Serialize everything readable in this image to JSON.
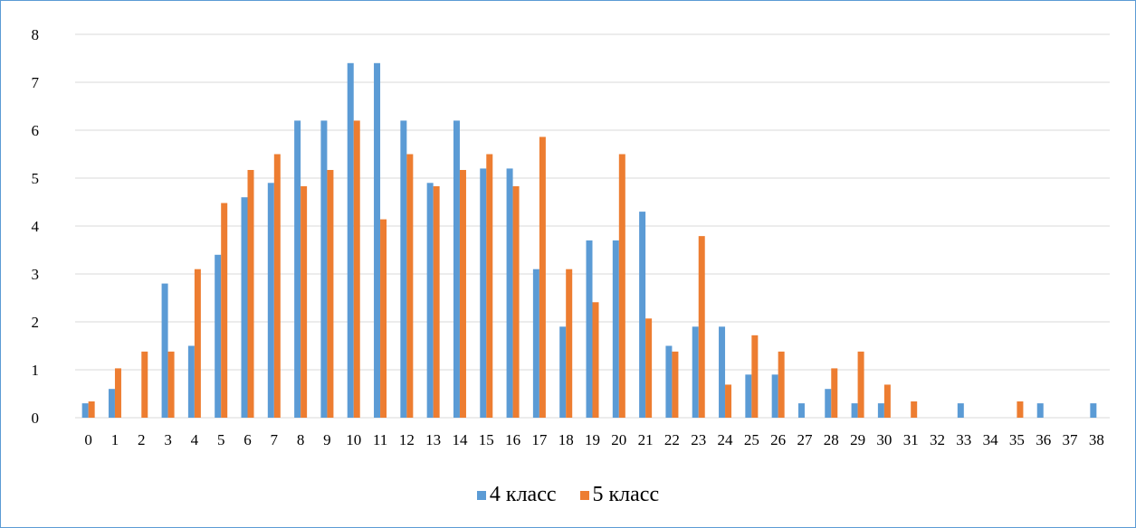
{
  "chart_data": {
    "type": "bar",
    "title": "",
    "xlabel": "",
    "ylabel": "",
    "ylim": [
      0,
      8
    ],
    "yticks": [
      0,
      1,
      2,
      3,
      4,
      5,
      6,
      7,
      8
    ],
    "grid": true,
    "legend_position": "bottom",
    "categories": [
      "0",
      "1",
      "2",
      "3",
      "4",
      "5",
      "6",
      "7",
      "8",
      "9",
      "10",
      "11",
      "12",
      "13",
      "14",
      "15",
      "16",
      "17",
      "18",
      "19",
      "20",
      "21",
      "22",
      "23",
      "24",
      "25",
      "26",
      "27",
      "28",
      "29",
      "30",
      "31",
      "32",
      "33",
      "34",
      "35",
      "36",
      "37",
      "38"
    ],
    "series": [
      {
        "name": "4 класс",
        "color": "#5b9bd5",
        "values": [
          0.3,
          0.6,
          0,
          2.8,
          1.5,
          3.4,
          4.6,
          4.9,
          6.2,
          6.2,
          7.4,
          7.4,
          6.2,
          4.9,
          6.2,
          5.2,
          5.2,
          3.1,
          1.9,
          3.7,
          3.7,
          4.3,
          1.5,
          1.9,
          1.9,
          0.9,
          0.9,
          0.3,
          0.6,
          0.3,
          0.3,
          0,
          0,
          0.3,
          0,
          0,
          0.3,
          0,
          0.3
        ]
      },
      {
        "name": "5 класс",
        "color": "#ed7d31",
        "values": [
          0.34,
          1.03,
          1.38,
          1.38,
          3.1,
          4.48,
          5.17,
          5.5,
          4.83,
          5.17,
          6.2,
          4.14,
          5.5,
          4.83,
          5.17,
          5.5,
          4.83,
          5.86,
          3.1,
          2.41,
          5.5,
          2.07,
          1.38,
          3.79,
          0.69,
          1.72,
          1.38,
          0,
          1.03,
          1.38,
          0.69,
          0.34,
          0,
          0,
          0,
          0.34,
          0,
          0,
          0
        ]
      }
    ]
  }
}
